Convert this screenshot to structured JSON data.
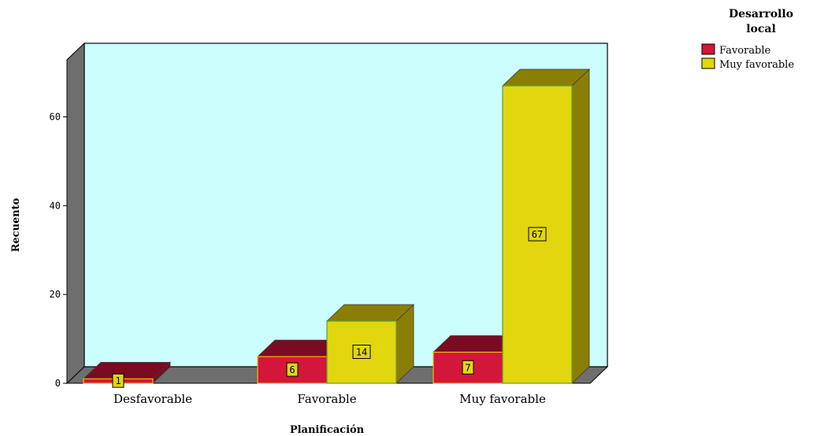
{
  "chart_data": {
    "type": "bar",
    "style": "3d-clustered",
    "xlabel": "Planificación",
    "ylabel": "Recuento",
    "categories": [
      "Desfavorable",
      "Favorable",
      "Muy favorable"
    ],
    "series": [
      {
        "name": "Favorable",
        "values": [
          1,
          6,
          7
        ],
        "color": "#d4163a",
        "side_color": "#7b0b22"
      },
      {
        "name": "Muy favorable",
        "values": [
          0,
          14,
          67
        ],
        "color": "#e2d60e",
        "side_color": "#8a7e06"
      }
    ],
    "value_labels": [
      [
        "1",
        "6",
        "7"
      ],
      [
        null,
        "14",
        "67"
      ]
    ],
    "yticks": [
      0,
      20,
      40,
      60
    ],
    "ylim": [
      0,
      74
    ],
    "legend": {
      "title_line1": "Desarrollo",
      "title_line2": "local",
      "position": "top-right"
    },
    "plot_background": "#ccfefe",
    "wall_color": "#6e6e6e",
    "grid": false
  }
}
